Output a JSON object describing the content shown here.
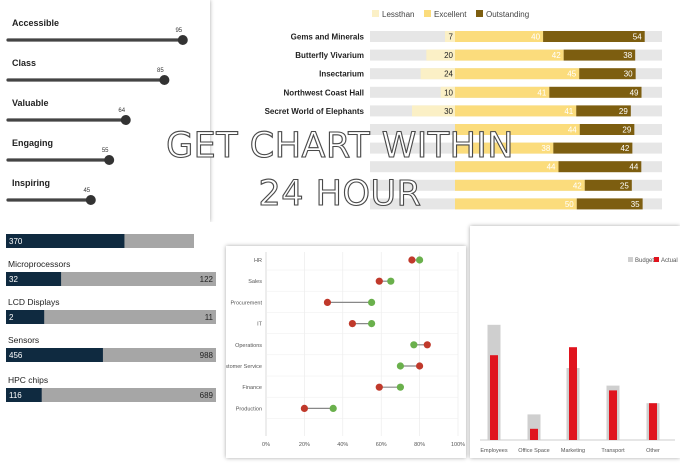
{
  "chart_data": [
    {
      "type": "slider",
      "items": [
        {
          "label": "Accessible",
          "value": 95
        },
        {
          "label": "Class",
          "value": 85
        },
        {
          "label": "Valuable",
          "value": 64
        },
        {
          "label": "Engaging",
          "value": 55
        },
        {
          "label": "Inspiring",
          "value": 45
        }
      ],
      "range": [
        0,
        100
      ],
      "colors": {
        "track": "#444444",
        "knob": "#333333"
      }
    },
    {
      "type": "bar",
      "stacked": true,
      "legend": [
        "Lessthan",
        "Excellent",
        "Outstanding"
      ],
      "legend_position": "top",
      "categories": [
        "Gems and Minerals",
        "Butterfly Vivarium",
        "Insectarium",
        "Northwest Coast Hall",
        "Secret World of Elephants",
        "",
        "",
        "",
        "",
        ""
      ],
      "series": [
        {
          "name": "Lessthan",
          "values": [
            7,
            20,
            24,
            10,
            30,
            null,
            null,
            null,
            null,
            null
          ],
          "color": "#fbf0c6"
        },
        {
          "name": "Excellent",
          "values": [
            40,
            42,
            45,
            41,
            41,
            44,
            38,
            44,
            42,
            50
          ],
          "color": "#fbdc7c"
        },
        {
          "name": "Outstanding",
          "values": [
            54,
            38,
            30,
            49,
            29,
            29,
            42,
            44,
            25,
            35
          ],
          "color": "#7d5e10"
        }
      ],
      "background_color": "#e6e6e6"
    },
    {
      "type": "bar",
      "subtype": "progress",
      "items": [
        {
          "label": "",
          "value": 370,
          "max": null
        },
        {
          "label": "Microprocessors",
          "value": 32,
          "max": 122
        },
        {
          "label": "LCD Displays",
          "value": 2,
          "max": 11
        },
        {
          "label": "Sensors",
          "value": 456,
          "max": 988
        },
        {
          "label": "HPC chips",
          "value": 116,
          "max": 689
        }
      ],
      "first_fill_fraction": 0.63,
      "colors": {
        "fill": "#0f2a40",
        "track": "#a6a6a6"
      }
    },
    {
      "type": "scatter",
      "subtype": "dumbbell",
      "categories": [
        "HR",
        "Sales",
        "Procurement",
        "IT",
        "Operations",
        "Customer Service",
        "Finance",
        "Production"
      ],
      "series": [
        {
          "name": "",
          "color": "#c0392b",
          "values": [
            76,
            59,
            32,
            45,
            84,
            80,
            59,
            20
          ]
        },
        {
          "name": "",
          "color": "#6ab04c",
          "values": [
            80,
            65,
            55,
            55,
            77,
            70,
            70,
            35
          ]
        }
      ],
      "xticks": [
        "0%",
        "20%",
        "40%",
        "60%",
        "80%",
        "100%"
      ],
      "xlim": [
        0,
        100
      ]
    },
    {
      "type": "bar",
      "subtype": "overlapped",
      "legend": [
        "Budget",
        "Actual"
      ],
      "legend_position": "top-right",
      "categories": [
        "Employees",
        "Office Space",
        "Marketing",
        "Transport",
        "Other"
      ],
      "series": [
        {
          "name": "Budget",
          "values": [
            72,
            16,
            45,
            34,
            23
          ],
          "color": "#cfcfcf"
        },
        {
          "name": "Actual",
          "values": [
            53,
            7,
            58,
            31,
            23
          ],
          "color": "#e0141e"
        }
      ],
      "ylim": [
        0,
        100
      ]
    }
  ],
  "overlay": {
    "line1": "GET CHART WITHIN",
    "line2": "24 HOUR"
  }
}
